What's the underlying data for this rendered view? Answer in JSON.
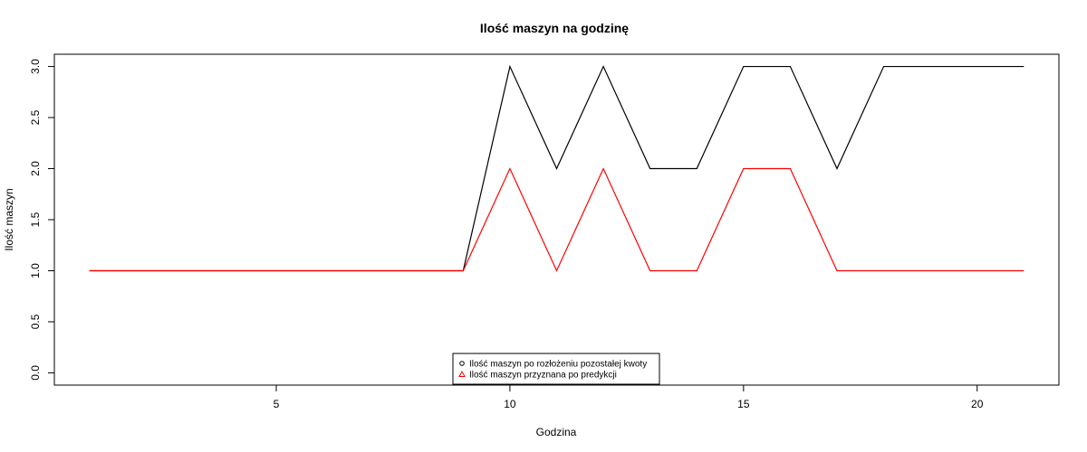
{
  "chart_data": {
    "type": "line",
    "title": "Ilość maszyn na godzinę",
    "xlabel": "Godzina",
    "ylabel": "Ilość maszyn",
    "xlim": [
      0.25,
      21.75
    ],
    "ylim": [
      -0.12,
      3.12
    ],
    "xticks": [
      5,
      10,
      15,
      20
    ],
    "yticks": [
      0.0,
      0.5,
      1.0,
      1.5,
      2.0,
      2.5,
      3.0
    ],
    "ytick_labels": [
      "0.0",
      "0.5",
      "1.0",
      "1.5",
      "2.0",
      "2.5",
      "3.0"
    ],
    "x": [
      1,
      2,
      3,
      4,
      5,
      6,
      7,
      8,
      9,
      10,
      11,
      12,
      13,
      14,
      15,
      16,
      17,
      18,
      19,
      20,
      21
    ],
    "grid": false,
    "legend_position": "bottom-center",
    "series": [
      {
        "name": "Ilość maszyn po rozłożeniu pozostałej kwoty",
        "color": "#000000",
        "marker": "circle",
        "values": [
          1,
          1,
          1,
          1,
          1,
          1,
          1,
          1,
          1,
          3,
          2,
          3,
          2,
          2,
          3,
          3,
          2,
          3,
          3,
          3,
          3
        ]
      },
      {
        "name": "Ilość maszyn przyznana po predykcji",
        "color": "#ff0000",
        "marker": "triangle",
        "values": [
          1,
          1,
          1,
          1,
          1,
          1,
          1,
          1,
          1,
          2,
          1,
          2,
          1,
          1,
          2,
          2,
          1,
          1,
          1,
          1,
          1
        ]
      }
    ]
  }
}
